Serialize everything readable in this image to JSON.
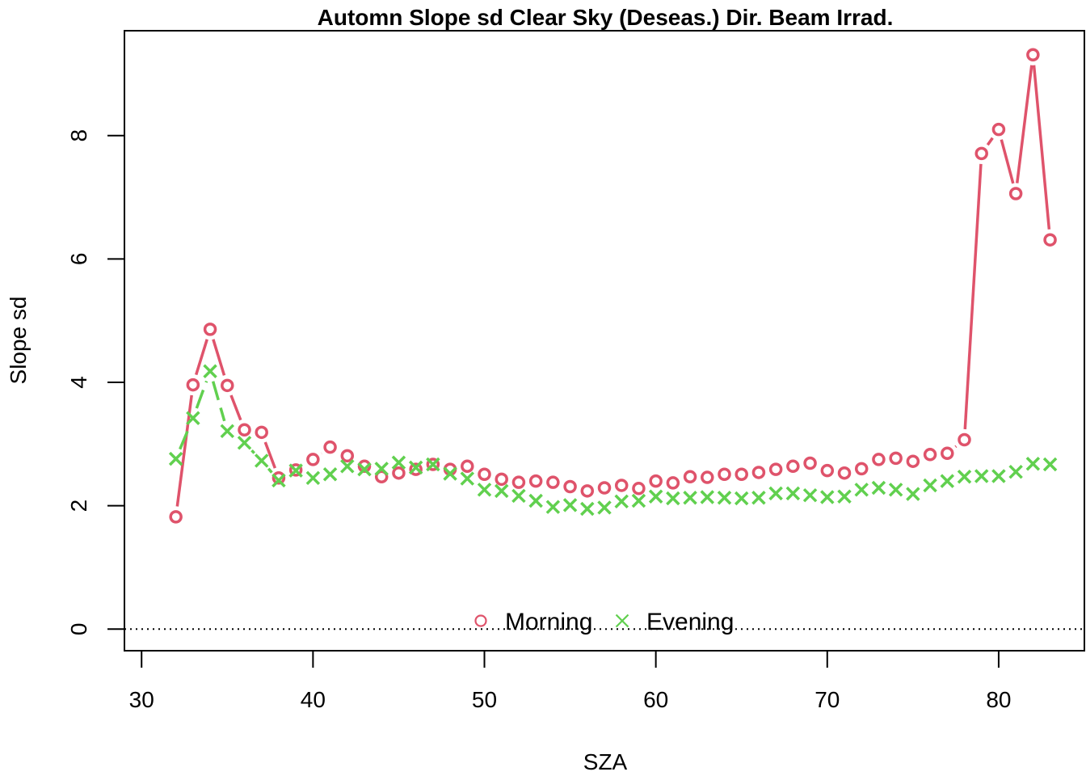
{
  "chart_data": {
    "type": "line",
    "title": "Automn Slope sd Clear Sky (Deseas.) Dir. Beam Irrad.",
    "xlabel": "SZA",
    "ylabel": "Slope sd",
    "xlim": [
      29,
      85
    ],
    "ylim": [
      -0.35,
      9.7
    ],
    "xticks": [
      30,
      40,
      50,
      60,
      70,
      80
    ],
    "yticks": [
      0,
      2,
      4,
      6,
      8
    ],
    "reference_line": {
      "y": 0,
      "style": "dotted"
    },
    "legend_placement": "bottom",
    "series": [
      {
        "name": "Morning",
        "color": "#DF536B",
        "marker": "circle",
        "x": [
          32,
          33,
          34,
          35,
          36,
          37,
          38,
          39,
          40,
          41,
          42,
          43,
          44,
          45,
          46,
          47,
          48,
          49,
          50,
          51,
          52,
          53,
          54,
          55,
          56,
          57,
          58,
          59,
          60,
          61,
          62,
          63,
          64,
          65,
          66,
          67,
          68,
          69,
          70,
          71,
          72,
          73,
          74,
          75,
          76,
          77,
          78,
          79,
          80,
          81,
          82,
          83
        ],
        "values": [
          1.82,
          3.96,
          4.86,
          3.95,
          3.23,
          3.19,
          2.45,
          2.58,
          2.75,
          2.95,
          2.81,
          2.64,
          2.47,
          2.53,
          2.59,
          2.67,
          2.59,
          2.64,
          2.51,
          2.43,
          2.38,
          2.4,
          2.38,
          2.31,
          2.24,
          2.29,
          2.33,
          2.28,
          2.4,
          2.37,
          2.47,
          2.46,
          2.51,
          2.51,
          2.54,
          2.59,
          2.64,
          2.69,
          2.57,
          2.53,
          2.6,
          2.75,
          2.77,
          2.72,
          2.83,
          2.85,
          3.07,
          7.71,
          8.1,
          7.06,
          9.31,
          6.31
        ]
      },
      {
        "name": "Evening",
        "color": "#61D04F",
        "marker": "cross",
        "x": [
          32,
          33,
          34,
          35,
          36,
          37,
          38,
          39,
          40,
          41,
          42,
          43,
          44,
          45,
          46,
          47,
          48,
          49,
          50,
          51,
          52,
          53,
          54,
          55,
          56,
          57,
          58,
          59,
          60,
          61,
          62,
          63,
          64,
          65,
          66,
          67,
          68,
          69,
          70,
          71,
          72,
          73,
          74,
          75,
          76,
          77,
          78,
          79,
          80,
          81,
          82,
          83
        ],
        "values": [
          2.76,
          3.42,
          4.18,
          3.21,
          3.02,
          2.73,
          2.41,
          2.57,
          2.45,
          2.51,
          2.64,
          2.59,
          2.6,
          2.7,
          2.62,
          2.67,
          2.52,
          2.44,
          2.26,
          2.24,
          2.16,
          2.08,
          1.98,
          2.01,
          1.95,
          1.97,
          2.07,
          2.08,
          2.15,
          2.12,
          2.13,
          2.14,
          2.13,
          2.12,
          2.13,
          2.2,
          2.2,
          2.17,
          2.14,
          2.15,
          2.26,
          2.29,
          2.26,
          2.19,
          2.33,
          2.4,
          2.47,
          2.48,
          2.48,
          2.55,
          2.68,
          2.67
        ]
      }
    ]
  }
}
